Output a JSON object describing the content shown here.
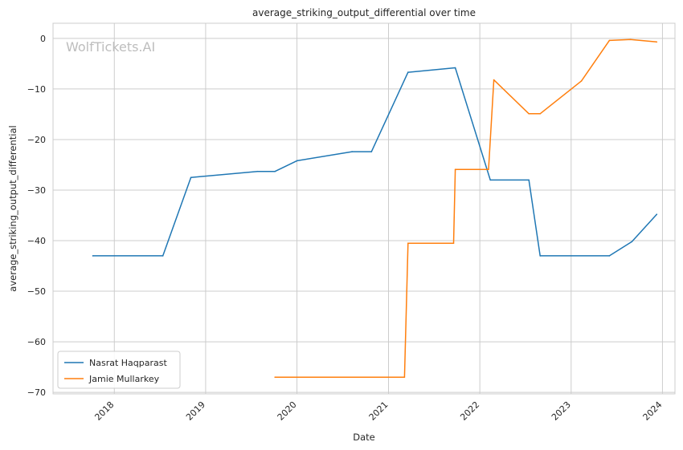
{
  "chart_data": {
    "type": "line",
    "title": "average_striking_output_differential over time",
    "xlabel": "Date",
    "ylabel": "average_striking_output_differential",
    "watermark": "WolfTickets.AI",
    "x_range": [
      "2017-05-01",
      "2024-02-20"
    ],
    "ylim": [
      -70.3,
      3
    ],
    "x_ticks": [
      {
        "date": "2018-01-01",
        "label": "2018"
      },
      {
        "date": "2019-01-01",
        "label": "2019"
      },
      {
        "date": "2020-01-01",
        "label": "2020"
      },
      {
        "date": "2021-01-01",
        "label": "2021"
      },
      {
        "date": "2022-01-01",
        "label": "2022"
      },
      {
        "date": "2023-01-01",
        "label": "2023"
      },
      {
        "date": "2024-01-01",
        "label": "2024"
      }
    ],
    "y_ticks": [
      {
        "value": 0,
        "label": "0"
      },
      {
        "value": -10,
        "label": "−10"
      },
      {
        "value": -20,
        "label": "−20"
      },
      {
        "value": -30,
        "label": "−30"
      },
      {
        "value": -40,
        "label": "−40"
      },
      {
        "value": -50,
        "label": "−50"
      },
      {
        "value": -60,
        "label": "−60"
      },
      {
        "value": -70,
        "label": "−70"
      }
    ],
    "grid": true,
    "legend_position": "lower-left",
    "series": [
      {
        "name": "Nasrat Haqparast",
        "color": "#1f77b4",
        "points": [
          {
            "x": "2017-10-07",
            "y": -43.0
          },
          {
            "x": "2018-07-14",
            "y": -43.0
          },
          {
            "x": "2018-11-03",
            "y": -27.5
          },
          {
            "x": "2019-07-27",
            "y": -26.3
          },
          {
            "x": "2019-10-05",
            "y": -26.3
          },
          {
            "x": "2020-01-01",
            "y": -24.2
          },
          {
            "x": "2020-08-08",
            "y": -22.4
          },
          {
            "x": "2020-10-25",
            "y": -22.4
          },
          {
            "x": "2021-03-20",
            "y": -6.7
          },
          {
            "x": "2021-09-25",
            "y": -5.8
          },
          {
            "x": "2022-02-12",
            "y": -28.0
          },
          {
            "x": "2022-07-16",
            "y": -28.0
          },
          {
            "x": "2022-08-30",
            "y": -43.0
          },
          {
            "x": "2023-06-03",
            "y": -43.0
          },
          {
            "x": "2023-09-01",
            "y": -40.2
          },
          {
            "x": "2023-12-09",
            "y": -34.8
          }
        ]
      },
      {
        "name": "Jamie Mullarkey",
        "color": "#ff7f0e",
        "points": [
          {
            "x": "2019-10-05",
            "y": -67.0
          },
          {
            "x": "2021-03-06",
            "y": -67.0
          },
          {
            "x": "2021-03-20",
            "y": -40.5
          },
          {
            "x": "2021-09-18",
            "y": -40.5
          },
          {
            "x": "2021-09-25",
            "y": -25.9
          },
          {
            "x": "2022-02-05",
            "y": -25.9
          },
          {
            "x": "2022-02-26",
            "y": -8.2
          },
          {
            "x": "2022-07-16",
            "y": -14.9
          },
          {
            "x": "2022-08-30",
            "y": -14.9
          },
          {
            "x": "2023-02-11",
            "y": -8.4
          },
          {
            "x": "2023-06-03",
            "y": -0.4
          },
          {
            "x": "2023-08-26",
            "y": -0.2
          },
          {
            "x": "2023-12-09",
            "y": -0.7
          }
        ]
      }
    ]
  }
}
